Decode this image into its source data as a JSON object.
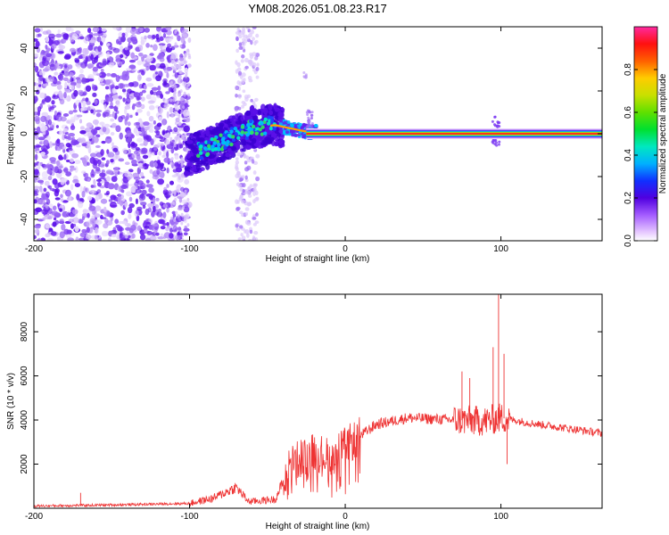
{
  "title": "YM08.2026.051.08.23.R17",
  "chart_data": [
    {
      "type": "heatmap",
      "name": "spectrogram",
      "xlabel": "Height of straight line (km)",
      "ylabel": "Frequency (Hz)",
      "xlim": [
        -200,
        165
      ],
      "ylim": [
        -50,
        50
      ],
      "xticks": [
        -200,
        -100,
        0,
        100
      ],
      "yticks": [
        -40,
        -20,
        0,
        20,
        40
      ],
      "xtick_labels": [
        "-200",
        "-100",
        "0",
        "100"
      ],
      "ytick_labels": [
        "-40",
        "-20",
        "0",
        "20",
        "40"
      ],
      "ridge": [
        {
          "x": -100,
          "y": -10
        },
        {
          "x": -80,
          "y": -4
        },
        {
          "x": -60,
          "y": 3
        },
        {
          "x": -45,
          "y": 4
        },
        {
          "x": -25,
          "y": 1
        },
        {
          "x": 0,
          "y": 0
        },
        {
          "x": 100,
          "y": 0
        },
        {
          "x": 165,
          "y": 0
        }
      ]
    },
    {
      "type": "colorbar",
      "name": "colorbar",
      "label": "Normalized spectral amplitude",
      "range": [
        0,
        1
      ],
      "ticks": [
        0.0,
        0.2,
        0.4,
        0.6,
        0.8
      ],
      "tick_labels": [
        "0.0",
        "0.2",
        "0.4",
        "0.6",
        "0.8"
      ]
    },
    {
      "type": "line",
      "name": "snr",
      "xlabel": "Height of straight line (km)",
      "ylabel": "SNR (10 * v/v)",
      "xlim": [
        -200,
        165
      ],
      "ylim": [
        0,
        9700
      ],
      "xticks": [
        -200,
        -100,
        0,
        100
      ],
      "yticks": [
        2000,
        4000,
        6000,
        8000
      ],
      "xtick_labels": [
        "-200",
        "-100",
        "0",
        "100"
      ],
      "ytick_labels": [
        "2000",
        "4000",
        "6000",
        "8000"
      ],
      "color": "#ee3333",
      "envelope": [
        {
          "x": -200,
          "y": 100
        },
        {
          "x": -150,
          "y": 150
        },
        {
          "x": -100,
          "y": 220
        },
        {
          "x": -85,
          "y": 450
        },
        {
          "x": -70,
          "y": 950
        },
        {
          "x": -62,
          "y": 300
        },
        {
          "x": -45,
          "y": 400
        },
        {
          "x": -35,
          "y": 2000
        },
        {
          "x": -20,
          "y": 2600
        },
        {
          "x": -10,
          "y": 2300
        },
        {
          "x": 0,
          "y": 2800
        },
        {
          "x": 20,
          "y": 3800
        },
        {
          "x": 40,
          "y": 4100
        },
        {
          "x": 70,
          "y": 4000
        },
        {
          "x": 90,
          "y": 3950
        },
        {
          "x": 100,
          "y": 4100
        },
        {
          "x": 120,
          "y": 3850
        },
        {
          "x": 140,
          "y": 3650
        },
        {
          "x": 165,
          "y": 3400
        }
      ],
      "spikes": [
        {
          "x": -170,
          "y": 700
        },
        {
          "x": 75,
          "y": 6200
        },
        {
          "x": 80,
          "y": 5900
        },
        {
          "x": 95,
          "y": 7300
        },
        {
          "x": 98.5,
          "y": 9700
        },
        {
          "x": 102,
          "y": 7000
        },
        {
          "x": 104,
          "y": 2000
        }
      ]
    }
  ]
}
